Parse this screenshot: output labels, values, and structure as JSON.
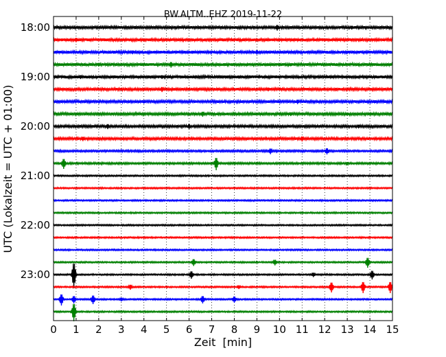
{
  "chart_data": {
    "type": "line",
    "title": "BW.ALTM..EHZ 2019-11-22",
    "xlabel": "Zeit  [min]",
    "ylabel": "UTC (Lokalzeit = UTC + 01:00)",
    "xlim": [
      0,
      15
    ],
    "x_ticks": [
      "0",
      "1",
      "2",
      "3",
      "4",
      "5",
      "6",
      "7",
      "8",
      "9",
      "10",
      "11",
      "12",
      "13",
      "14",
      "15"
    ],
    "y_ticks": [
      "18:00",
      "19:00",
      "20:00",
      "21:00",
      "22:00",
      "23:00"
    ],
    "grid": "vertical dotted at each minute",
    "row_start": "18:00",
    "row_step_minutes": 15,
    "row_colors": [
      "#000000",
      "#ff0000",
      "#0000ff",
      "#008000"
    ],
    "series": [
      {
        "row": 0,
        "color": "#000000",
        "amp": 1.6,
        "events": [
          [
            3.6,
            2.5
          ],
          [
            9.9,
            4.5
          ],
          [
            13.2,
            3.0
          ]
        ]
      },
      {
        "row": 1,
        "color": "#ff0000",
        "amp": 1.8,
        "events": [
          [
            1.0,
            3.5
          ],
          [
            4.0,
            2.5
          ],
          [
            12.0,
            2.5
          ]
        ]
      },
      {
        "row": 2,
        "color": "#0000ff",
        "amp": 1.8,
        "events": [
          [
            3.5,
            3.0
          ],
          [
            9.0,
            3.5
          ],
          [
            13.0,
            2.5
          ]
        ]
      },
      {
        "row": 3,
        "color": "#008000",
        "amp": 1.8,
        "events": [
          [
            2.0,
            3.0
          ],
          [
            5.2,
            4.5
          ],
          [
            10.5,
            2.5
          ]
        ]
      },
      {
        "row": 4,
        "color": "#000000",
        "amp": 1.8,
        "events": [
          [
            1.2,
            3.0
          ],
          [
            4.8,
            3.0
          ],
          [
            8.2,
            2.5
          ]
        ]
      },
      {
        "row": 5,
        "color": "#ff0000",
        "amp": 1.6,
        "events": [
          [
            4.8,
            4.0
          ],
          [
            9.5,
            3.0
          ],
          [
            12.5,
            2.5
          ]
        ]
      },
      {
        "row": 6,
        "color": "#0000ff",
        "amp": 1.6,
        "events": [
          [
            4.0,
            3.0
          ],
          [
            10.8,
            3.5
          ],
          [
            14.2,
            2.5
          ]
        ]
      },
      {
        "row": 7,
        "color": "#008000",
        "amp": 1.6,
        "events": [
          [
            6.6,
            4.0
          ],
          [
            10.5,
            3.0
          ],
          [
            13.0,
            2.5
          ]
        ]
      },
      {
        "row": 8,
        "color": "#000000",
        "amp": 1.5,
        "events": [
          [
            2.4,
            4.0
          ],
          [
            6.0,
            4.0
          ],
          [
            13.5,
            3.0
          ]
        ]
      },
      {
        "row": 9,
        "color": "#ff0000",
        "amp": 1.5,
        "events": [
          [
            1.3,
            3.5
          ],
          [
            11.0,
            4.0
          ],
          [
            12.8,
            2.5
          ]
        ]
      },
      {
        "row": 10,
        "color": "#0000ff",
        "amp": 1.2,
        "events": [
          [
            9.6,
            4.5
          ],
          [
            12.1,
            5.0
          ]
        ]
      },
      {
        "row": 11,
        "color": "#008000",
        "amp": 1.2,
        "events": [
          [
            0.45,
            8.0
          ],
          [
            7.2,
            10.0
          ],
          [
            13.0,
            2.5
          ]
        ]
      },
      {
        "row": 12,
        "color": "#000000",
        "amp": 0.9,
        "events": []
      },
      {
        "row": 13,
        "color": "#ff0000",
        "amp": 0.9,
        "events": []
      },
      {
        "row": 14,
        "color": "#0000ff",
        "amp": 0.9,
        "events": []
      },
      {
        "row": 15,
        "color": "#008000",
        "amp": 0.9,
        "events": []
      },
      {
        "row": 16,
        "color": "#000000",
        "amp": 0.9,
        "events": []
      },
      {
        "row": 17,
        "color": "#ff0000",
        "amp": 0.9,
        "events": []
      },
      {
        "row": 18,
        "color": "#0000ff",
        "amp": 0.9,
        "events": []
      },
      {
        "row": 19,
        "color": "#008000",
        "amp": 0.9,
        "events": [
          [
            6.2,
            5.5
          ],
          [
            9.8,
            4.5
          ],
          [
            13.9,
            8.0
          ]
        ]
      },
      {
        "row": 20,
        "color": "#000000",
        "amp": 0.9,
        "events": [
          [
            0.9,
            20.0
          ],
          [
            6.1,
            6.0
          ],
          [
            11.5,
            3.5
          ],
          [
            14.1,
            7.0
          ]
        ]
      },
      {
        "row": 21,
        "color": "#ff0000",
        "amp": 0.9,
        "events": [
          [
            3.4,
            4.0
          ],
          [
            8.2,
            3.0
          ],
          [
            12.3,
            8.0
          ],
          [
            13.7,
            9.0
          ],
          [
            14.9,
            9.0
          ]
        ]
      },
      {
        "row": 22,
        "color": "#0000ff",
        "amp": 0.9,
        "events": [
          [
            0.35,
            9.0
          ],
          [
            0.9,
            6.0
          ],
          [
            1.75,
            7.0
          ],
          [
            3.0,
            3.0
          ],
          [
            6.6,
            6.0
          ],
          [
            8.0,
            5.0
          ]
        ]
      },
      {
        "row": 23,
        "color": "#008000",
        "amp": 0.9,
        "events": [
          [
            0.9,
            14.0
          ]
        ]
      }
    ]
  }
}
